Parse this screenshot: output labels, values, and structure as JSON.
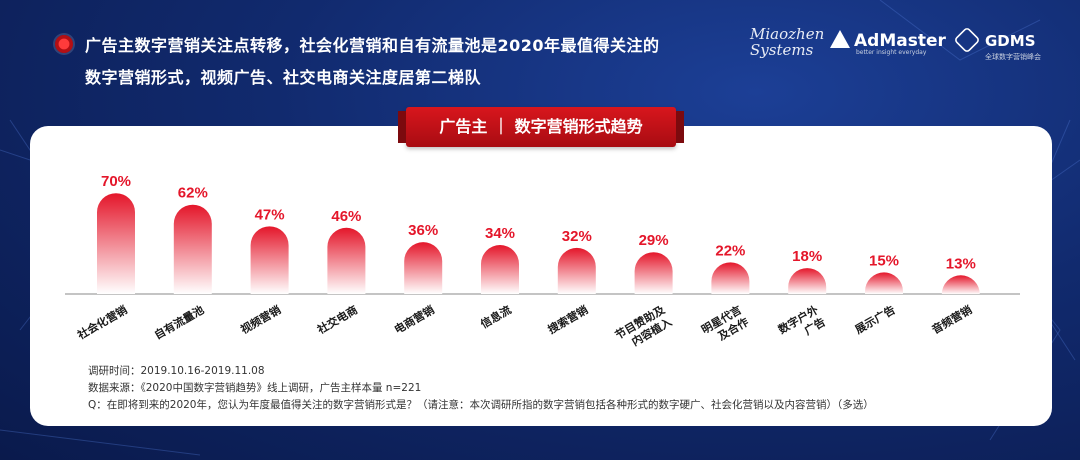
{
  "headline": {
    "line1": "广告主数字营销关注点转移，社会化营销和自有流量池是2020年最值得关注的",
    "line2": "数字营销形式，视频广告、社交电商关注度居第二梯队"
  },
  "logos": {
    "miaozhen_line1": "Miaozhen",
    "miaozhen_line2": "Systems",
    "admaster": "AdMaster",
    "admaster_tag": "better insight everyday",
    "gdms": "GDMS",
    "gdms_tag": "全球数字营销峰会"
  },
  "chart_data": {
    "type": "bar",
    "title": "广告主 ｜ 数字营销形式趋势",
    "categories": [
      "社会化营销",
      "自有流量池",
      "视频营销",
      "社交电商",
      "电商营销",
      "信息流",
      "搜索营销",
      "节目赞助及内容植入",
      "明星代言及合作",
      "数字户外广告",
      "展示广告",
      "音频营销"
    ],
    "category_lines": [
      [
        "社会化营销"
      ],
      [
        "自有流量池"
      ],
      [
        "视频营销"
      ],
      [
        "社交电商"
      ],
      [
        "电商营销"
      ],
      [
        "信息流"
      ],
      [
        "搜索营销"
      ],
      [
        "节目赞助及",
        "内容植入"
      ],
      [
        "明星代言",
        "及合作"
      ],
      [
        "数字户外",
        "广告"
      ],
      [
        "展示广告"
      ],
      [
        "音频营销"
      ]
    ],
    "values": [
      70,
      62,
      47,
      46,
      36,
      34,
      32,
      29,
      22,
      18,
      15,
      13
    ],
    "value_labels": [
      "70%",
      "62%",
      "47%",
      "46%",
      "36%",
      "34%",
      "32%",
      "29%",
      "22%",
      "18%",
      "15%",
      "13%"
    ],
    "ylim": [
      0,
      75
    ],
    "colors": {
      "bar_top": "#e4162a",
      "bar_bottom": "#ffffff",
      "label": "#e4162a"
    }
  },
  "notes": {
    "time": "调研时间：2019.10.16-2019.11.08",
    "source": "数据来源：《2020中国数字营销趋势》线上调研，广告主样本量 n=221",
    "question": "Q：在即将到来的2020年，您认为年度最值得关注的数字营销形式是？（请注意：本次调研所指的数字营销包括各种形式的数字硬广、社会化营销以及内容营销）（多选）"
  }
}
